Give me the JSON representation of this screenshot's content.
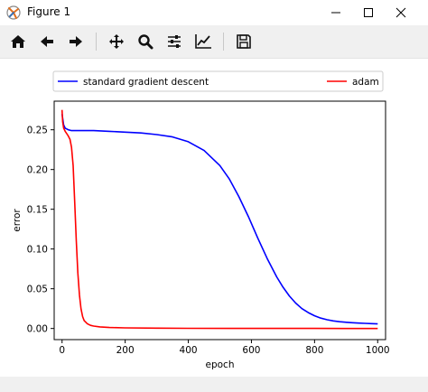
{
  "window": {
    "title": "Figure 1",
    "app_icon": "matplotlib-figure-icon",
    "controls": [
      "minimize-icon",
      "maximize-icon",
      "close-icon"
    ]
  },
  "toolbar": {
    "buttons": [
      "home-icon",
      "back-arrow-icon",
      "forward-arrow-icon",
      "pan-icon",
      "zoom-icon",
      "configure-subplots-icon",
      "edit-axis-icon",
      "save-icon"
    ]
  },
  "chart_data": {
    "type": "line",
    "title": "",
    "xlabel": "epoch",
    "ylabel": "error",
    "xlim": [
      -25,
      1025
    ],
    "ylim": [
      -0.014,
      0.286
    ],
    "xticks": [
      0,
      200,
      400,
      600,
      800,
      1000
    ],
    "yticks": [
      0.0,
      0.05,
      0.1,
      0.15,
      0.2,
      0.25
    ],
    "ytick_labels": [
      "0.00",
      "0.05",
      "0.10",
      "0.15",
      "0.20",
      "0.25"
    ],
    "grid": false,
    "legend_placement": "above-top",
    "series": [
      {
        "name": "standard gradient descent",
        "color": "#0000ff",
        "x": [
          0,
          5,
          10,
          20,
          30,
          50,
          100,
          150,
          200,
          250,
          300,
          350,
          400,
          450,
          500,
          530,
          560,
          590,
          620,
          650,
          680,
          700,
          720,
          740,
          760,
          780,
          800,
          820,
          840,
          860,
          880,
          900,
          920,
          940,
          960,
          980,
          1000
        ],
        "y": [
          0.27,
          0.256,
          0.252,
          0.25,
          0.249,
          0.249,
          0.249,
          0.248,
          0.247,
          0.246,
          0.244,
          0.241,
          0.235,
          0.224,
          0.205,
          0.188,
          0.166,
          0.141,
          0.114,
          0.088,
          0.065,
          0.052,
          0.041,
          0.032,
          0.025,
          0.02,
          0.016,
          0.013,
          0.011,
          0.0095,
          0.0085,
          0.0078,
          0.0072,
          0.0068,
          0.0064,
          0.0061,
          0.0058
        ]
      },
      {
        "name": "adam",
        "color": "#ff0000",
        "x": [
          0,
          2,
          5,
          10,
          15,
          20,
          25,
          30,
          35,
          40,
          45,
          50,
          55,
          60,
          65,
          70,
          80,
          90,
          100,
          120,
          150,
          200,
          300,
          400,
          600,
          800,
          1000
        ],
        "y": [
          0.275,
          0.26,
          0.252,
          0.248,
          0.245,
          0.242,
          0.238,
          0.228,
          0.205,
          0.16,
          0.11,
          0.07,
          0.042,
          0.025,
          0.015,
          0.01,
          0.006,
          0.004,
          0.003,
          0.002,
          0.0012,
          0.0008,
          0.0004,
          0.0002,
          0.0001,
          0.0001,
          0.0
        ]
      }
    ]
  }
}
